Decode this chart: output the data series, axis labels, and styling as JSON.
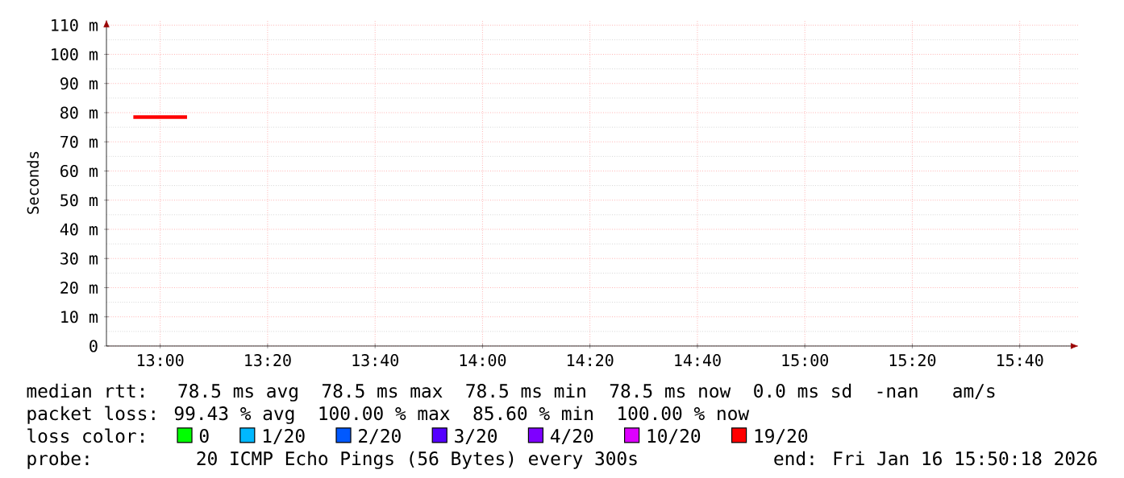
{
  "chart_data": {
    "type": "line",
    "ylabel": "Seconds",
    "legend_title": "loss color:",
    "legend": "bottom",
    "grid": true,
    "line_style": "solid",
    "marker": "none",
    "x": [
      12.9167,
      13.0833
    ],
    "xlim": [
      12.8333,
      15.85
    ],
    "xticks": [
      {
        "value": 13,
        "label": "13:00"
      },
      {
        "value": 13.3333,
        "label": "13:20"
      },
      {
        "value": 13.6667,
        "label": "13:40"
      },
      {
        "value": 14,
        "label": "14:00"
      },
      {
        "value": 14.3333,
        "label": "14:20"
      },
      {
        "value": 14.6667,
        "label": "14:40"
      },
      {
        "value": 15,
        "label": "15:00"
      },
      {
        "value": 15.3333,
        "label": "15:20"
      },
      {
        "value": 15.6667,
        "label": "15:40"
      }
    ],
    "ylim": [
      0,
      112
    ],
    "yticks": [
      0,
      {
        "value": 10,
        "label": "10 m"
      },
      {
        "value": 20,
        "label": "20 m"
      },
      {
        "value": 30,
        "label": "30 m"
      },
      {
        "value": 40,
        "label": "40 m"
      },
      {
        "value": 50,
        "label": "50 m"
      },
      {
        "value": 60,
        "label": "60 m"
      },
      {
        "value": 70,
        "label": "70 m"
      },
      {
        "value": 80,
        "label": "80 m"
      },
      {
        "value": 90,
        "label": "90 m"
      },
      {
        "value": 100,
        "label": "100 m"
      },
      {
        "value": 110,
        "label": "110 m"
      }
    ],
    "series": [
      {
        "name": "0",
        "color": "#00ff00",
        "values": [
          null,
          null
        ]
      },
      {
        "name": "1/20",
        "color": "#00b8ff",
        "values": [
          null,
          null
        ]
      },
      {
        "name": "2/20",
        "color": "#0059ff",
        "values": [
          null,
          null
        ]
      },
      {
        "name": "3/20",
        "color": "#5500ff",
        "values": [
          null,
          null
        ]
      },
      {
        "name": "4/20",
        "color": "#7e00ff",
        "values": [
          null,
          null
        ]
      },
      {
        "name": "10/20",
        "color": "#dd00ff",
        "values": [
          null,
          null
        ]
      },
      {
        "name": "19/20",
        "color": "#ff0000",
        "values": [
          78.5,
          78.5
        ]
      }
    ],
    "annotations": [
      "median rtt:  78.5 ms avg  78.5 ms max  78.5 ms min  78.5 ms now  0.0 ms sd  -nan   am/s",
      "packet loss: 99.43 % avg  100.00 % max  85.60 % min  100.00 % now",
      "probe:       20 ICMP Echo Pings (56 Bytes) every 300s",
      "end: Fri Jan 16 15:50:18 2026"
    ]
  }
}
